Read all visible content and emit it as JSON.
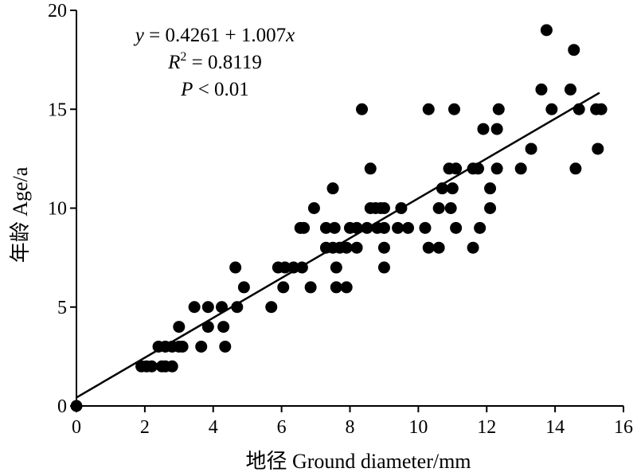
{
  "chart_data": {
    "type": "scatter",
    "xlabel": "地径 Ground diameter/mm",
    "ylabel": "年龄 Age/a",
    "xlim": [
      0,
      16
    ],
    "ylim": [
      0,
      20
    ],
    "xticks": [
      0,
      2,
      4,
      6,
      8,
      10,
      12,
      14,
      16
    ],
    "yticks": [
      0,
      5,
      10,
      15,
      20
    ],
    "grid": false,
    "annotation": {
      "equation": "y = 0.4261 + 1.007x",
      "r_squared": "R2 = 0.8119",
      "p_value": "P < 0.01"
    },
    "trendline": {
      "intercept": 0.4261,
      "slope": 1.007,
      "x_start": 0,
      "x_end": 15.3
    },
    "points": [
      [
        0,
        0
      ],
      [
        1.9,
        2
      ],
      [
        2.05,
        2
      ],
      [
        2.2,
        2
      ],
      [
        2.5,
        2
      ],
      [
        2.6,
        2
      ],
      [
        2.8,
        2
      ],
      [
        2.4,
        3
      ],
      [
        2.6,
        3
      ],
      [
        2.8,
        3
      ],
      [
        3.0,
        3
      ],
      [
        3.1,
        3
      ],
      [
        3.65,
        3
      ],
      [
        4.35,
        3
      ],
      [
        3.0,
        4
      ],
      [
        3.85,
        4
      ],
      [
        4.3,
        4
      ],
      [
        3.45,
        5
      ],
      [
        3.85,
        5
      ],
      [
        4.25,
        5
      ],
      [
        4.7,
        5
      ],
      [
        5.7,
        5
      ],
      [
        4.9,
        6
      ],
      [
        6.05,
        6
      ],
      [
        6.85,
        6
      ],
      [
        7.6,
        6
      ],
      [
        7.9,
        6
      ],
      [
        4.65,
        7
      ],
      [
        5.9,
        7
      ],
      [
        6.1,
        7
      ],
      [
        6.35,
        7
      ],
      [
        6.6,
        7
      ],
      [
        7.6,
        7
      ],
      [
        9.0,
        7
      ],
      [
        7.3,
        8
      ],
      [
        7.5,
        8
      ],
      [
        7.7,
        8
      ],
      [
        7.9,
        8
      ],
      [
        8.2,
        8
      ],
      [
        9.0,
        8
      ],
      [
        10.3,
        8
      ],
      [
        10.6,
        8
      ],
      [
        11.6,
        8
      ],
      [
        6.55,
        9
      ],
      [
        6.65,
        9
      ],
      [
        7.3,
        9
      ],
      [
        7.55,
        9
      ],
      [
        8.0,
        9
      ],
      [
        8.2,
        9
      ],
      [
        8.5,
        9
      ],
      [
        8.8,
        9
      ],
      [
        9.0,
        9
      ],
      [
        9.4,
        9
      ],
      [
        9.7,
        9
      ],
      [
        10.2,
        9
      ],
      [
        11.1,
        9
      ],
      [
        11.8,
        9
      ],
      [
        6.95,
        10
      ],
      [
        8.6,
        10
      ],
      [
        8.75,
        10
      ],
      [
        8.9,
        10
      ],
      [
        9.0,
        10
      ],
      [
        9.5,
        10
      ],
      [
        10.6,
        10
      ],
      [
        10.95,
        10
      ],
      [
        12.1,
        10
      ],
      [
        7.5,
        11
      ],
      [
        10.7,
        11
      ],
      [
        11.0,
        11
      ],
      [
        12.1,
        11
      ],
      [
        8.6,
        12
      ],
      [
        10.9,
        12
      ],
      [
        11.1,
        12
      ],
      [
        11.6,
        12
      ],
      [
        11.75,
        12
      ],
      [
        12.3,
        12
      ],
      [
        13.0,
        12
      ],
      [
        14.6,
        12
      ],
      [
        13.3,
        13
      ],
      [
        15.25,
        13
      ],
      [
        11.9,
        14
      ],
      [
        12.3,
        14
      ],
      [
        8.35,
        15
      ],
      [
        10.3,
        15
      ],
      [
        11.05,
        15
      ],
      [
        12.35,
        15
      ],
      [
        13.9,
        15
      ],
      [
        14.7,
        15
      ],
      [
        15.2,
        15
      ],
      [
        15.35,
        15
      ],
      [
        13.6,
        16
      ],
      [
        14.45,
        16
      ],
      [
        14.55,
        18
      ],
      [
        13.75,
        19
      ]
    ]
  }
}
